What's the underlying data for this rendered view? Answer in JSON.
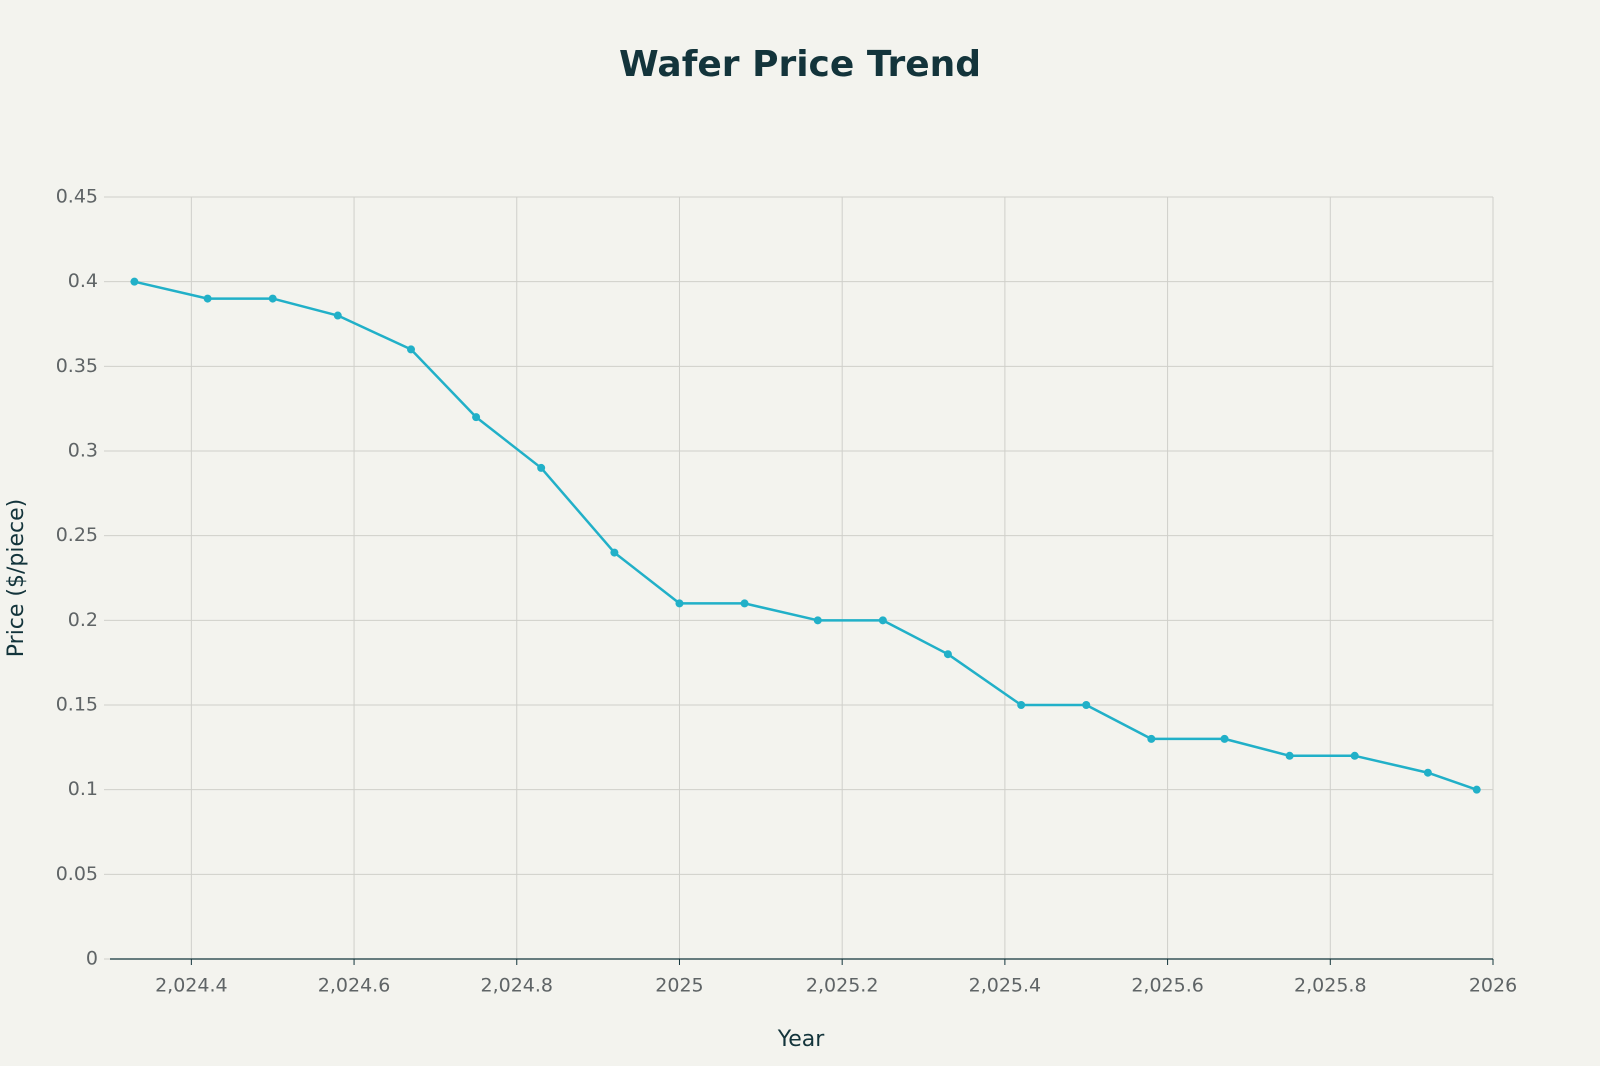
{
  "chart_data": {
    "type": "line",
    "title": "Wafer Price Trend",
    "x_label": "Year",
    "y_label": "Price ($/piece)",
    "x": [
      2024.33,
      2024.42,
      2024.5,
      2024.58,
      2024.67,
      2024.75,
      2024.83,
      2024.92,
      2025,
      2025.08,
      2025.17,
      2025.25,
      2025.33,
      2025.42,
      2025.5,
      2025.58,
      2025.67,
      2025.75,
      2025.83,
      2025.92,
      2025.98
    ],
    "values": [
      0.4,
      0.39,
      0.39,
      0.38,
      0.36,
      0.32,
      0.29,
      0.24,
      0.21,
      0.21,
      0.2,
      0.2,
      0.18,
      0.15,
      0.15,
      0.13,
      0.13,
      0.12,
      0.12,
      0.11,
      0.1
    ],
    "color": "#21b0c8",
    "xlim": [
      2024.3,
      2026
    ],
    "xticks": [
      {
        "value": 2024.4,
        "label": "2,024.4"
      },
      {
        "value": 2024.6,
        "label": "2,024.6"
      },
      {
        "value": 2024.8,
        "label": "2,024.8"
      },
      2025,
      {
        "value": 2025.2,
        "label": "2,025.2"
      },
      {
        "value": 2025.4,
        "label": "2,025.4"
      },
      {
        "value": 2025.6,
        "label": "2,025.6"
      },
      {
        "value": 2025.8,
        "label": "2,025.8"
      },
      2026
    ],
    "ylim": [
      0,
      0.45
    ],
    "yticks": [
      0,
      0.05,
      0.1,
      0.15,
      0.2,
      0.25,
      0.3,
      0.35,
      0.4,
      0.45
    ],
    "grid": true
  }
}
